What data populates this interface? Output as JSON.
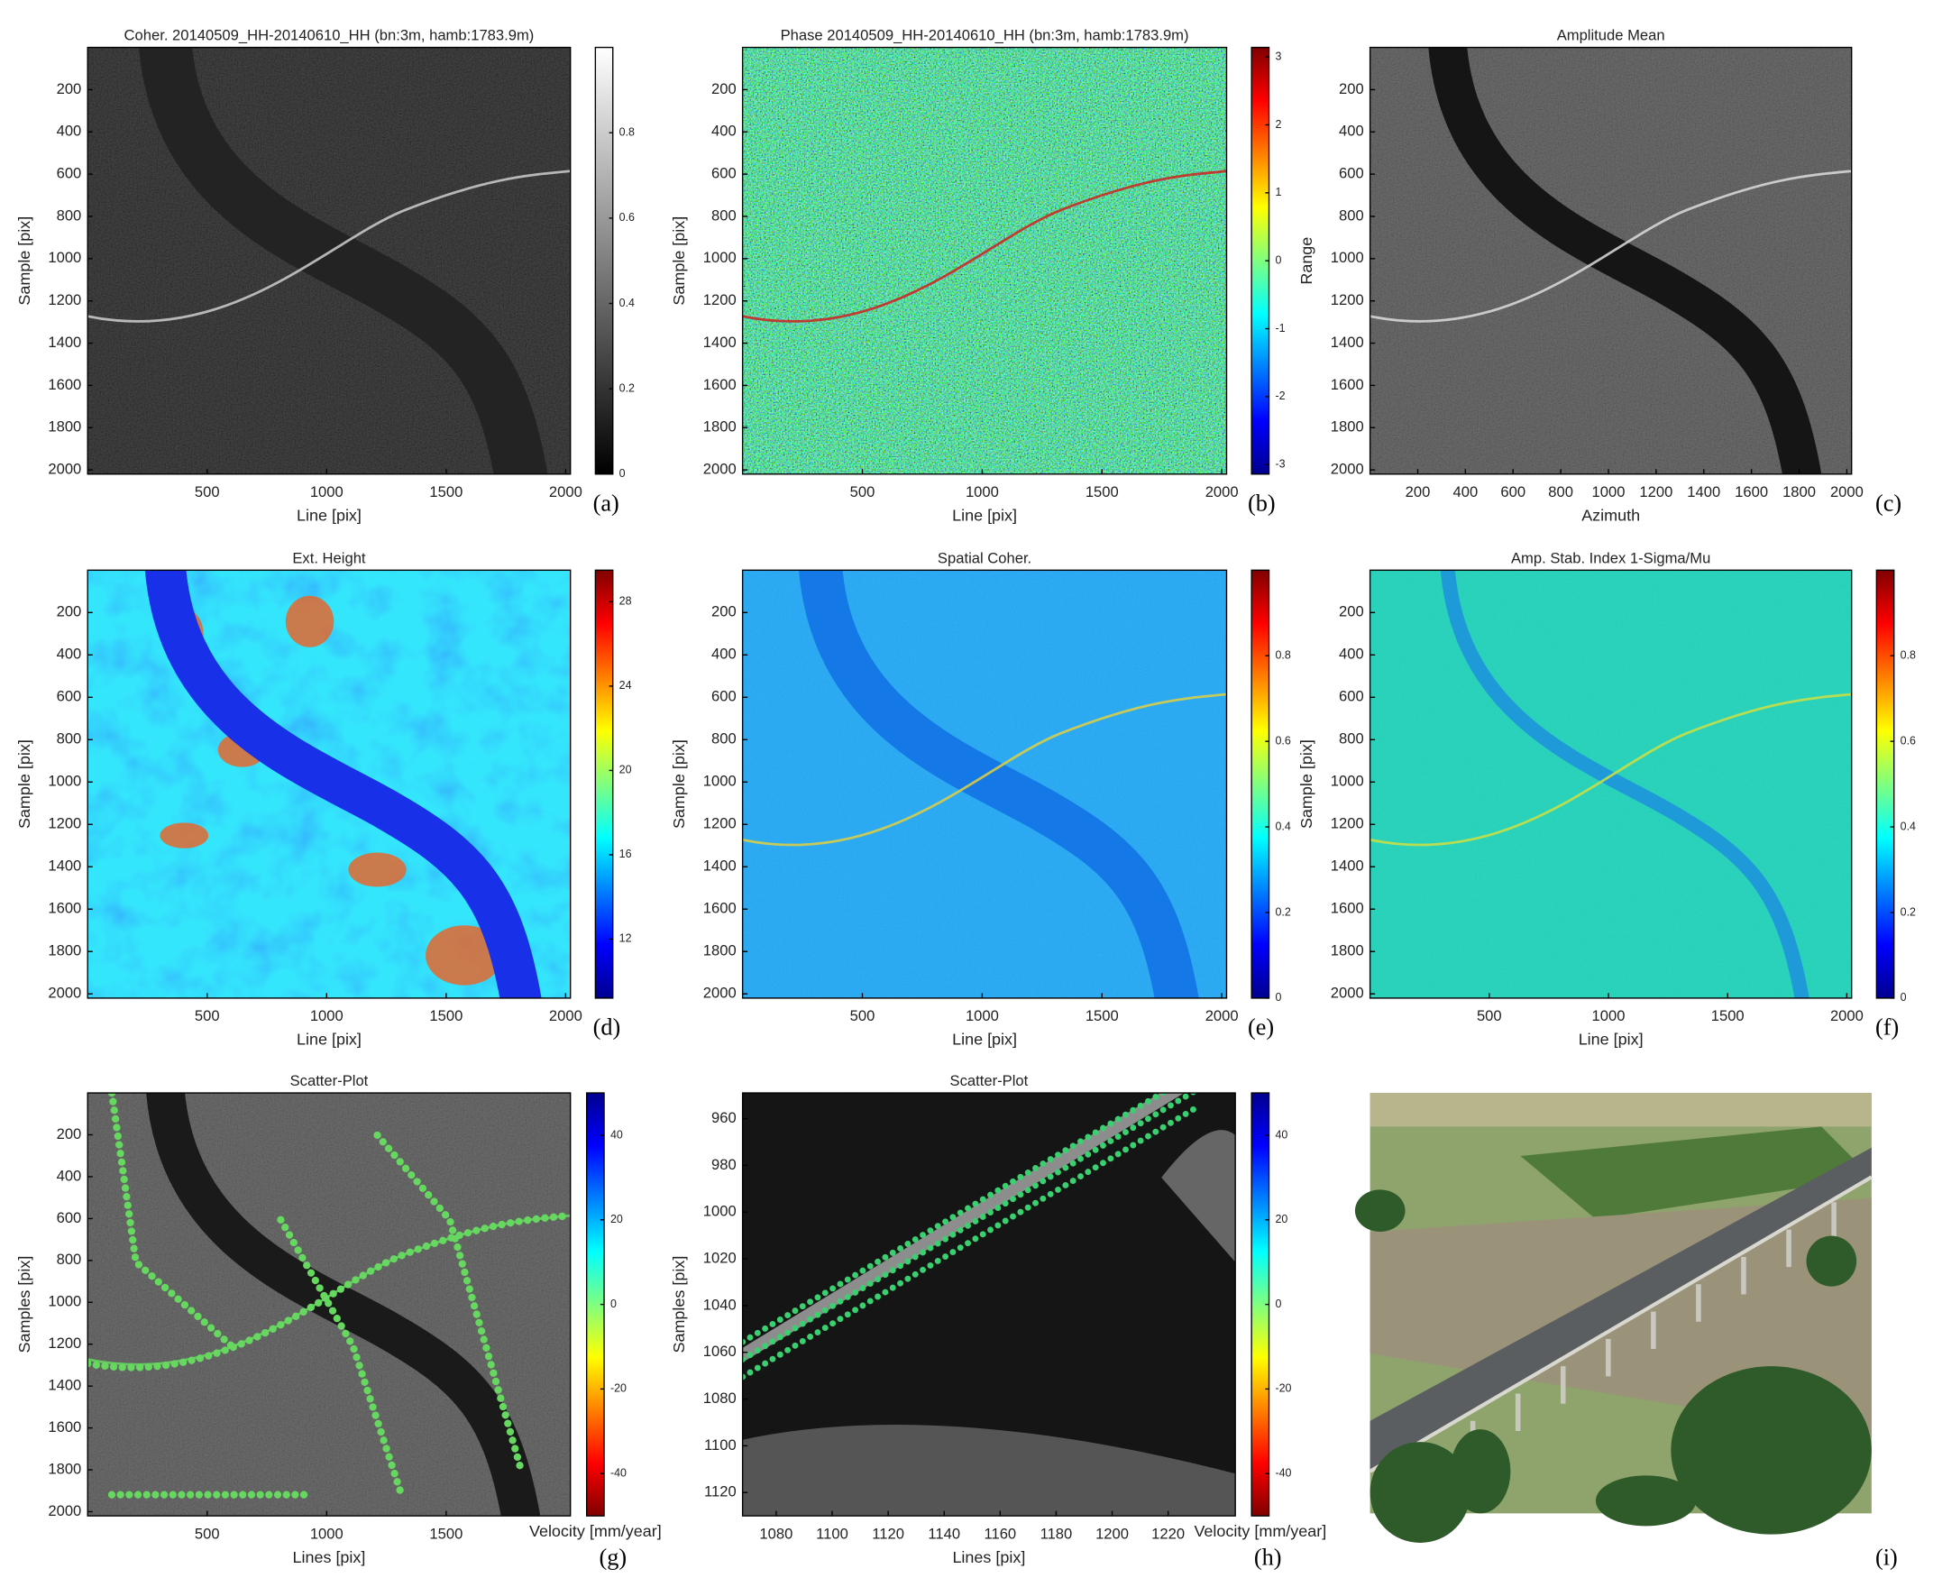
{
  "chart_data": [
    {
      "type": "image",
      "title": "Coher. 20140509_HH-20140610_HH (bn:3m, hamb:1783.9m)",
      "panel_label": "(a)",
      "xlabel": "Line [pix]",
      "ylabel": "Sample [pix]",
      "xlim": [
        0,
        2020
      ],
      "ylim": [
        2020,
        0
      ],
      "xticks": [
        500,
        1000,
        1500,
        2000
      ],
      "yticks": [
        200,
        400,
        600,
        800,
        1000,
        1200,
        1400,
        1600,
        1800,
        2000
      ],
      "colormap": "gray",
      "clim": [
        0,
        1
      ],
      "cticks": [
        0,
        0.2,
        0.4,
        0.6,
        0.8
      ]
    },
    {
      "type": "image",
      "title": "Phase 20140509_HH-20140610_HH (bn:3m, hamb:1783.9m)",
      "panel_label": "(b)",
      "xlabel": "Line [pix]",
      "ylabel": "Sample [pix]",
      "xlim": [
        0,
        2020
      ],
      "ylim": [
        2020,
        0
      ],
      "xticks": [
        500,
        1000,
        1500,
        2000
      ],
      "yticks": [
        200,
        400,
        600,
        800,
        1000,
        1200,
        1400,
        1600,
        1800,
        2000
      ],
      "colormap": "jet",
      "clim": [
        -3.14,
        3.14
      ],
      "cticks": [
        -3,
        -2,
        -1,
        0,
        1,
        2,
        3
      ]
    },
    {
      "type": "image",
      "title": "Amplitude Mean",
      "panel_label": "(c)",
      "xlabel": "Azimuth",
      "ylabel": "Range",
      "xlim": [
        0,
        2020
      ],
      "ylim": [
        2020,
        0
      ],
      "xticks": [
        200,
        400,
        600,
        800,
        1000,
        1200,
        1400,
        1600,
        1800,
        2000
      ],
      "yticks": [
        200,
        400,
        600,
        800,
        1000,
        1200,
        1400,
        1600,
        1800,
        2000
      ]
    },
    {
      "type": "image",
      "title": "Ext. Height",
      "panel_label": "(d)",
      "xlabel": "Line [pix]",
      "ylabel": "Sample [pix]",
      "xlim": [
        0,
        2020
      ],
      "ylim": [
        2020,
        0
      ],
      "xticks": [
        500,
        1000,
        1500,
        2000
      ],
      "yticks": [
        200,
        400,
        600,
        800,
        1000,
        1200,
        1400,
        1600,
        1800,
        2000
      ],
      "colormap": "jet",
      "clim": [
        9.2,
        29.5
      ],
      "cticks": [
        12,
        16,
        20,
        24,
        28
      ]
    },
    {
      "type": "image",
      "title": "Spatial Coher.",
      "panel_label": "(e)",
      "xlabel": "Line [pix]",
      "ylabel": "Sample [pix]",
      "xlim": [
        0,
        2020
      ],
      "ylim": [
        2020,
        0
      ],
      "xticks": [
        500,
        1000,
        1500,
        2000
      ],
      "yticks": [
        200,
        400,
        600,
        800,
        1000,
        1200,
        1400,
        1600,
        1800,
        2000
      ],
      "colormap": "jet",
      "clim": [
        0,
        1
      ],
      "cticks": [
        0,
        0.2,
        0.4,
        0.6,
        0.8
      ]
    },
    {
      "type": "image",
      "title": "Amp. Stab. Index 1-Sigma/Mu",
      "panel_label": "(f)",
      "xlabel": "Line [pix]",
      "ylabel": "Sample [pix]",
      "xlim": [
        0,
        2020
      ],
      "ylim": [
        2020,
        0
      ],
      "xticks": [
        500,
        1000,
        1500,
        2000
      ],
      "yticks": [
        200,
        400,
        600,
        800,
        1000,
        1200,
        1400,
        1600,
        1800,
        2000
      ],
      "colormap": "jet",
      "clim": [
        0,
        1
      ],
      "cticks": [
        0,
        0.2,
        0.4,
        0.6,
        0.8
      ]
    },
    {
      "type": "image",
      "title": "Scatter-Plot",
      "panel_label": "(g)",
      "xlabel": "Lines [pix]",
      "ylabel": "Samples [pix]",
      "xlim": [
        0,
        2020
      ],
      "ylim": [
        2020,
        0
      ],
      "xticks": [
        500,
        1000,
        1500
      ],
      "yticks": [
        200,
        400,
        600,
        800,
        1000,
        1200,
        1400,
        1600,
        1800,
        2000
      ],
      "colormap": "jet_r",
      "clim": [
        -50,
        50
      ],
      "cticks": [
        -40,
        -20,
        0,
        20,
        40
      ],
      "clabel": "Velocity [mm/year]"
    },
    {
      "type": "image",
      "title": "Scatter-Plot",
      "panel_label": "(h)",
      "xlabel": "Lines [pix]",
      "ylabel": "Samples [pix]",
      "xlim": [
        1068,
        1244
      ],
      "ylim": [
        1130,
        949
      ],
      "xticks": [
        1080,
        1100,
        1120,
        1140,
        1160,
        1180,
        1200,
        1220
      ],
      "yticks": [
        960,
        980,
        1000,
        1020,
        1040,
        1060,
        1080,
        1100,
        1120
      ],
      "colormap": "jet_r",
      "clim": [
        -50,
        50
      ],
      "cticks": [
        -40,
        -20,
        0,
        20,
        40
      ],
      "clabel": "Velocity [mm/year]"
    },
    {
      "type": "photo",
      "panel_label": "(i)"
    }
  ]
}
